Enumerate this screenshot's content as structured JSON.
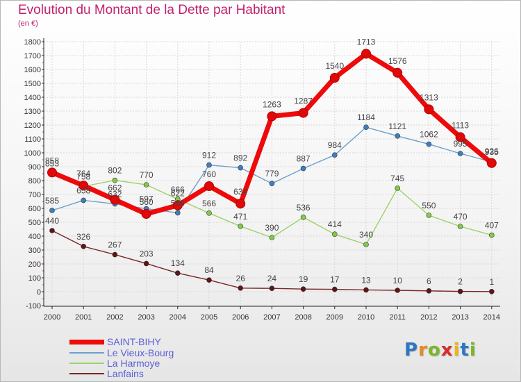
{
  "title": "Evolution du Montant de la Dette par Habitant",
  "subtitle": "(en €)",
  "logo": {
    "letters": [
      "P",
      "r",
      "o",
      "x",
      "i",
      "t",
      "i"
    ],
    "colors": [
      "#2f76c2",
      "#e58a1f",
      "#7bb52a",
      "#d92b2b",
      "#e7b61b",
      "#2f76c2",
      "#7bb52a"
    ]
  },
  "chart_data": {
    "type": "line",
    "title": "Evolution du Montant de la Dette par Habitant",
    "ylabel": "(en €)",
    "xlabel": "",
    "ylim": [
      -100,
      1800
    ],
    "ytick_step": 100,
    "x": [
      "2000",
      "2001",
      "2002",
      "2003",
      "2004",
      "2005",
      "2006",
      "2007",
      "2008",
      "2009",
      "2010",
      "2011",
      "2012",
      "2013",
      "2014"
    ],
    "yticks": [
      "-100",
      "0",
      "100",
      "200",
      "300",
      "400",
      "500",
      "600",
      "700",
      "800",
      "900",
      "1000",
      "1100",
      "1200",
      "1300",
      "1400",
      "1500",
      "1600",
      "1700",
      "1800"
    ],
    "series": [
      {
        "name": "Lanfains",
        "color": "#7a2525",
        "marker": "#5e1515",
        "width": 1.4,
        "r": 3.5,
        "values": [
          440,
          326,
          267,
          203,
          134,
          84,
          26,
          24,
          19,
          17,
          13,
          10,
          6,
          2,
          1
        ],
        "labels": [
          "440",
          "326",
          "267",
          "203",
          "134",
          "84",
          "26",
          "24",
          "19",
          "17",
          "13",
          "10",
          "6",
          "2",
          "1"
        ]
      },
      {
        "name": "La Harmoye",
        "color": "#9bd36a",
        "marker": "#86c94a",
        "width": 1.4,
        "r": 3.5,
        "values": [
          853,
          758,
          802,
          770,
          666,
          566,
          471,
          390,
          536,
          414,
          340,
          745,
          550,
          470,
          407
        ],
        "labels": [
          "853",
          "758",
          "802",
          "770",
          "666",
          "566",
          "471",
          "390",
          "536",
          "414",
          "340",
          "745",
          "550",
          "470",
          "407"
        ]
      },
      {
        "name": "Le Vieux-Bourg",
        "color": "#6aa0cc",
        "marker": "#3d7fbf",
        "width": 1.4,
        "r": 3.5,
        "values": [
          585,
          658,
          632,
          597,
          568,
          912,
          892,
          779,
          887,
          984,
          1184,
          1121,
          1062,
          995,
          935
        ],
        "labels": [
          "585",
          "658",
          "632",
          "597",
          "568",
          "912",
          "892",
          "779",
          "887",
          "984",
          "1184",
          "1121",
          "1062",
          "995",
          "935"
        ]
      },
      {
        "name": "SAINT-BIHY",
        "color": "#ee0a0a",
        "marker": "#e00808",
        "width": 7,
        "r": 6.5,
        "values": [
          858,
          764,
          662,
          560,
          622,
          760,
          634,
          1263,
          1287,
          1540,
          1713,
          1576,
          1313,
          1113,
          926
        ],
        "labels": [
          "858",
          "764",
          "662",
          "560",
          "622",
          "760",
          "634",
          "1263",
          "1287",
          "1540",
          "1713",
          "1576",
          "1313",
          "1113",
          "926"
        ]
      }
    ],
    "legend_order": [
      "SAINT-BIHY",
      "Le Vieux-Bourg",
      "La Harmoye",
      "Lanfains"
    ],
    "legend_position": "bottom-left"
  }
}
